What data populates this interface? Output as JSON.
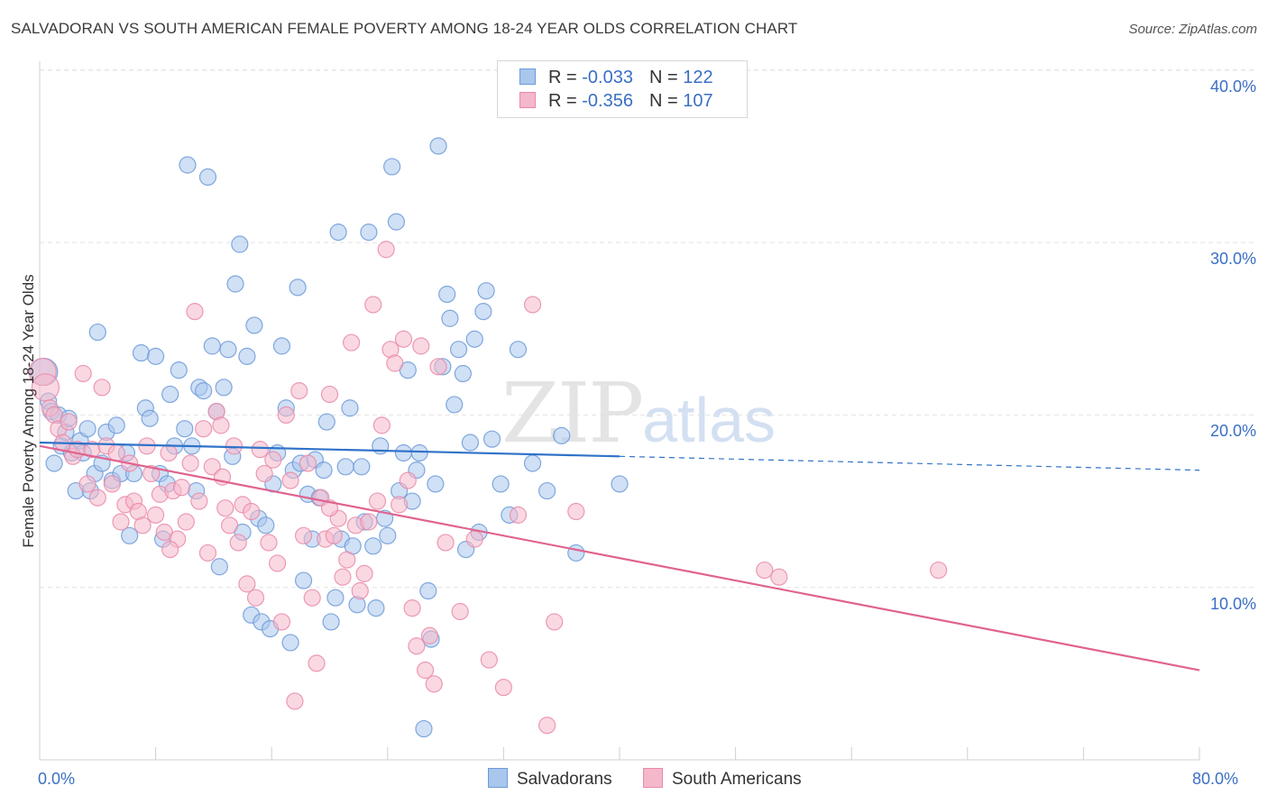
{
  "title": "SALVADORAN VS SOUTH AMERICAN FEMALE POVERTY AMONG 18-24 YEAR OLDS CORRELATION CHART",
  "source": "Source: ZipAtlas.com",
  "watermark": {
    "zip": "ZIP",
    "atlas": "atlas"
  },
  "legend": {
    "rows": [
      {
        "r_label": "R = ",
        "r_value": "-0.033",
        "n_label": "N = ",
        "n_value": "122"
      },
      {
        "r_label": "R = ",
        "r_value": "-0.356",
        "n_label": "N = ",
        "n_value": "107"
      }
    ]
  },
  "bottom_legend": {
    "salvadorans": "Salvadorans",
    "south_americans": "South Americans"
  },
  "colors": {
    "blue_fill": "#a9c6ec",
    "blue_stroke": "#6c9ad8",
    "blue_line": "#2f72c9",
    "pink_fill": "#f5b8cb",
    "pink_stroke": "#e98aa8",
    "pink_line": "#e0638f",
    "grid": "#e2e2e2",
    "axis_text": "#3a6fc4"
  },
  "chart_data": {
    "type": "scatter",
    "title": "SALVADORAN VS SOUTH AMERICAN FEMALE POVERTY AMONG 18-24 YEAR OLDS CORRELATION CHART",
    "xlabel": "",
    "ylabel": "Female Poverty Among 18-24 Year Olds",
    "xlim": [
      0,
      80
    ],
    "ylim": [
      0,
      40.8
    ],
    "x_tick_labels": [
      "0.0%",
      "80.0%"
    ],
    "y_ticks": [
      10,
      20,
      30,
      40
    ],
    "y_tick_labels": [
      "10.0%",
      "20.0%",
      "30.0%",
      "40.0%"
    ],
    "grid": true,
    "legend_position": "top-center",
    "series": [
      {
        "name": "Salvadorans",
        "R": -0.033,
        "N": 122,
        "trend": {
          "x0": 0,
          "y0": 18.4,
          "x1": 40,
          "y1": 17.6,
          "dashed_to_x": 80,
          "dashed_to_y": 16.8
        },
        "points": [
          [
            0.3,
            22.5
          ],
          [
            0.6,
            20.8
          ],
          [
            0.8,
            20.2
          ],
          [
            1.0,
            17.2
          ],
          [
            1.3,
            20.0
          ],
          [
            1.5,
            18.2
          ],
          [
            1.8,
            19.0
          ],
          [
            2.0,
            19.8
          ],
          [
            2.2,
            17.8
          ],
          [
            2.5,
            15.6
          ],
          [
            2.8,
            18.5
          ],
          [
            3.0,
            17.8
          ],
          [
            3.3,
            19.2
          ],
          [
            3.5,
            15.6
          ],
          [
            3.8,
            16.6
          ],
          [
            4.0,
            24.8
          ],
          [
            4.3,
            17.2
          ],
          [
            4.6,
            19.0
          ],
          [
            5.0,
            16.2
          ],
          [
            5.3,
            19.4
          ],
          [
            5.6,
            16.6
          ],
          [
            6.0,
            17.8
          ],
          [
            6.2,
            13.0
          ],
          [
            6.5,
            16.6
          ],
          [
            7.0,
            23.6
          ],
          [
            7.3,
            20.4
          ],
          [
            7.6,
            19.8
          ],
          [
            8.0,
            23.4
          ],
          [
            8.3,
            16.6
          ],
          [
            8.5,
            12.8
          ],
          [
            8.8,
            16.0
          ],
          [
            9.0,
            21.2
          ],
          [
            9.3,
            18.2
          ],
          [
            9.6,
            22.6
          ],
          [
            10.0,
            19.2
          ],
          [
            10.2,
            34.5
          ],
          [
            10.5,
            18.2
          ],
          [
            10.8,
            15.6
          ],
          [
            11.0,
            21.6
          ],
          [
            11.3,
            21.4
          ],
          [
            11.6,
            33.8
          ],
          [
            11.9,
            24.0
          ],
          [
            12.2,
            20.2
          ],
          [
            12.4,
            11.2
          ],
          [
            12.7,
            21.6
          ],
          [
            13.0,
            23.8
          ],
          [
            13.3,
            17.6
          ],
          [
            13.5,
            27.6
          ],
          [
            13.8,
            29.9
          ],
          [
            14.0,
            13.2
          ],
          [
            14.3,
            23.4
          ],
          [
            14.6,
            8.4
          ],
          [
            14.8,
            25.2
          ],
          [
            15.1,
            14.0
          ],
          [
            15.3,
            8.0
          ],
          [
            15.6,
            13.6
          ],
          [
            15.9,
            7.6
          ],
          [
            16.1,
            16.0
          ],
          [
            16.4,
            17.8
          ],
          [
            16.7,
            24.0
          ],
          [
            17.0,
            20.4
          ],
          [
            17.3,
            6.8
          ],
          [
            17.5,
            16.8
          ],
          [
            17.8,
            27.4
          ],
          [
            18.0,
            17.2
          ],
          [
            18.2,
            10.4
          ],
          [
            18.5,
            15.4
          ],
          [
            18.8,
            12.8
          ],
          [
            19.0,
            17.4
          ],
          [
            19.3,
            15.2
          ],
          [
            19.6,
            16.8
          ],
          [
            19.8,
            19.6
          ],
          [
            20.1,
            8.0
          ],
          [
            20.4,
            9.4
          ],
          [
            20.6,
            30.6
          ],
          [
            20.8,
            12.8
          ],
          [
            21.1,
            17.0
          ],
          [
            21.4,
            20.4
          ],
          [
            21.6,
            12.4
          ],
          [
            21.9,
            9.0
          ],
          [
            22.2,
            17.0
          ],
          [
            22.4,
            13.8
          ],
          [
            22.7,
            30.6
          ],
          [
            23.0,
            12.4
          ],
          [
            23.2,
            8.8
          ],
          [
            23.5,
            18.2
          ],
          [
            23.8,
            14.0
          ],
          [
            24.0,
            13.0
          ],
          [
            24.3,
            34.4
          ],
          [
            24.6,
            31.2
          ],
          [
            24.8,
            15.6
          ],
          [
            25.1,
            17.8
          ],
          [
            25.4,
            22.6
          ],
          [
            25.7,
            15.0
          ],
          [
            26.0,
            16.8
          ],
          [
            26.2,
            17.8
          ],
          [
            26.5,
            1.8
          ],
          [
            26.8,
            9.8
          ],
          [
            27.0,
            7.0
          ],
          [
            27.3,
            16.0
          ],
          [
            27.5,
            35.6
          ],
          [
            27.8,
            22.8
          ],
          [
            28.1,
            27.0
          ],
          [
            28.3,
            25.6
          ],
          [
            28.6,
            20.6
          ],
          [
            28.9,
            23.8
          ],
          [
            29.2,
            22.4
          ],
          [
            29.4,
            12.2
          ],
          [
            29.7,
            18.4
          ],
          [
            30.0,
            24.4
          ],
          [
            30.3,
            13.2
          ],
          [
            30.6,
            26.0
          ],
          [
            30.8,
            27.2
          ],
          [
            31.2,
            18.6
          ],
          [
            31.8,
            16.0
          ],
          [
            32.4,
            14.2
          ],
          [
            33.0,
            23.8
          ],
          [
            34.0,
            17.2
          ],
          [
            35.0,
            15.6
          ],
          [
            36.0,
            18.8
          ],
          [
            37.0,
            12.0
          ],
          [
            40.0,
            16.0
          ]
        ]
      },
      {
        "name": "South Americans",
        "R": -0.356,
        "N": 107,
        "trend": {
          "x0": 0,
          "y0": 18.2,
          "x1": 80,
          "y1": 5.2
        },
        "points": [
          [
            0.2,
            22.5
          ],
          [
            0.4,
            21.6
          ],
          [
            0.7,
            20.4
          ],
          [
            1.0,
            20.0
          ],
          [
            1.3,
            19.2
          ],
          [
            1.6,
            18.4
          ],
          [
            2.0,
            19.6
          ],
          [
            2.3,
            17.6
          ],
          [
            2.6,
            18.0
          ],
          [
            3.0,
            22.4
          ],
          [
            3.3,
            16.0
          ],
          [
            3.6,
            18.0
          ],
          [
            4.0,
            15.2
          ],
          [
            4.3,
            21.6
          ],
          [
            4.6,
            18.2
          ],
          [
            5.0,
            16.0
          ],
          [
            5.3,
            17.8
          ],
          [
            5.6,
            13.8
          ],
          [
            5.9,
            14.8
          ],
          [
            6.2,
            17.2
          ],
          [
            6.5,
            15.0
          ],
          [
            6.8,
            14.4
          ],
          [
            7.1,
            13.6
          ],
          [
            7.4,
            18.2
          ],
          [
            7.7,
            16.6
          ],
          [
            8.0,
            14.2
          ],
          [
            8.3,
            15.4
          ],
          [
            8.6,
            13.2
          ],
          [
            8.9,
            17.8
          ],
          [
            9.2,
            15.6
          ],
          [
            9.5,
            12.8
          ],
          [
            9.8,
            15.8
          ],
          [
            10.1,
            13.8
          ],
          [
            10.4,
            17.2
          ],
          [
            10.7,
            26.0
          ],
          [
            11.0,
            15.0
          ],
          [
            11.3,
            19.2
          ],
          [
            11.6,
            12.0
          ],
          [
            11.9,
            17.0
          ],
          [
            12.2,
            20.2
          ],
          [
            12.5,
            19.4
          ],
          [
            12.8,
            14.6
          ],
          [
            13.1,
            13.6
          ],
          [
            13.4,
            18.2
          ],
          [
            13.7,
            12.6
          ],
          [
            14.0,
            14.8
          ],
          [
            14.3,
            10.2
          ],
          [
            14.6,
            14.4
          ],
          [
            14.9,
            9.4
          ],
          [
            15.2,
            18.0
          ],
          [
            15.5,
            16.6
          ],
          [
            15.8,
            12.6
          ],
          [
            16.1,
            17.4
          ],
          [
            16.4,
            11.4
          ],
          [
            16.7,
            8.0
          ],
          [
            17.0,
            20.0
          ],
          [
            17.3,
            16.2
          ],
          [
            17.6,
            3.4
          ],
          [
            17.9,
            21.4
          ],
          [
            18.2,
            13.0
          ],
          [
            18.5,
            17.2
          ],
          [
            18.8,
            9.4
          ],
          [
            19.1,
            5.6
          ],
          [
            19.4,
            15.2
          ],
          [
            19.7,
            12.8
          ],
          [
            20.0,
            21.2
          ],
          [
            20.3,
            13.0
          ],
          [
            20.6,
            14.0
          ],
          [
            20.9,
            10.6
          ],
          [
            21.2,
            11.6
          ],
          [
            21.5,
            24.2
          ],
          [
            21.8,
            13.6
          ],
          [
            22.1,
            9.8
          ],
          [
            22.4,
            10.8
          ],
          [
            22.7,
            13.8
          ],
          [
            23.0,
            26.4
          ],
          [
            23.3,
            15.0
          ],
          [
            23.6,
            19.4
          ],
          [
            23.9,
            29.6
          ],
          [
            24.2,
            23.8
          ],
          [
            24.5,
            23.0
          ],
          [
            24.8,
            14.8
          ],
          [
            25.1,
            24.4
          ],
          [
            25.4,
            16.2
          ],
          [
            25.7,
            8.8
          ],
          [
            26.0,
            6.6
          ],
          [
            26.3,
            24.0
          ],
          [
            26.6,
            5.2
          ],
          [
            26.9,
            7.2
          ],
          [
            27.2,
            4.4
          ],
          [
            27.5,
            22.8
          ],
          [
            28.0,
            12.6
          ],
          [
            29.0,
            8.6
          ],
          [
            30.0,
            12.8
          ],
          [
            31.0,
            5.8
          ],
          [
            32.0,
            4.2
          ],
          [
            33.0,
            14.2
          ],
          [
            34.0,
            26.4
          ],
          [
            35.0,
            2.0
          ],
          [
            35.5,
            8.0
          ],
          [
            37.0,
            14.4
          ],
          [
            50.0,
            11.0
          ],
          [
            51.0,
            10.6
          ],
          [
            62.0,
            11.0
          ],
          [
            20.0,
            14.6
          ],
          [
            9.0,
            12.2
          ],
          [
            12.6,
            16.4
          ]
        ]
      }
    ]
  }
}
